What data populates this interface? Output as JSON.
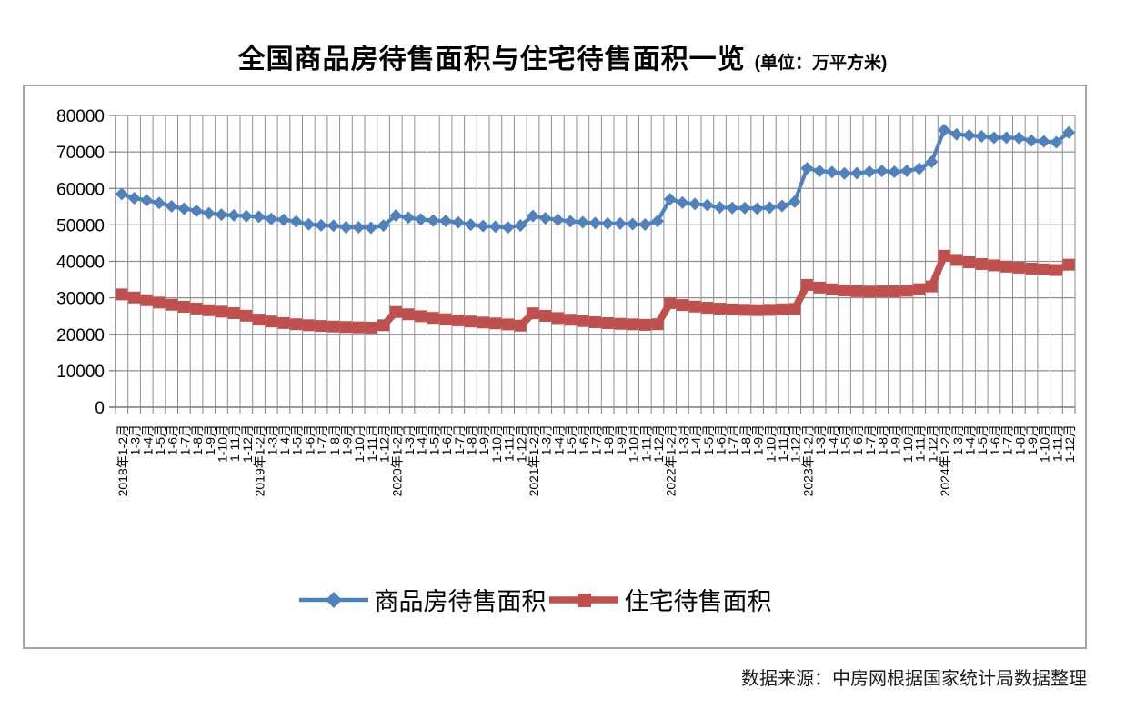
{
  "title": {
    "main": "全国商品房待售面积与住宅待售面积一览",
    "unit": "(单位：万平方米)"
  },
  "footer": {
    "source": "数据来源：中房网根据国家统计局数据整理"
  },
  "chart_data": {
    "type": "line",
    "title": "全国商品房待售面积与住宅待售面积一览",
    "unit": "万平方米",
    "xlabel": "",
    "ylabel": "",
    "ylim": [
      0,
      80000
    ],
    "ytick_step": 10000,
    "grid": true,
    "legend_position": "bottom",
    "categories": [
      "2018年1-2月",
      "1-3月",
      "1-4月",
      "1-5月",
      "1-6月",
      "1-7月",
      "1-8月",
      "1-9月",
      "1-10月",
      "1-11月",
      "1-12月",
      "2019年1-2月",
      "1-3月",
      "1-4月",
      "1-5月",
      "1-6月",
      "1-7月",
      "1-8月",
      "1-9月",
      "1-10月",
      "1-11月",
      "1-12月",
      "2020年1-2月",
      "1-3月",
      "1-4月",
      "1-5月",
      "1-6月",
      "1-7月",
      "1-8月",
      "1-9月",
      "1-10月",
      "1-11月",
      "1-12月",
      "2021年1-2月",
      "1-3月",
      "1-4月",
      "1-5月",
      "1-6月",
      "1-7月",
      "1-8月",
      "1-9月",
      "1-10月",
      "1-11月",
      "1-12月",
      "2022年1-2月",
      "1-3月",
      "1-4月",
      "1-5月",
      "1-6月",
      "1-7月",
      "1-8月",
      "1-9月",
      "1-10月",
      "1-11月",
      "1-12月",
      "2023年1-2月",
      "1-3月",
      "1-4月",
      "1-5月",
      "1-6月",
      "1-7月",
      "1-8月",
      "1-9月",
      "1-10月",
      "1-11月",
      "1-12月",
      "2024年1-2月",
      "1-3月",
      "1-4月",
      "1-5月",
      "1-6月",
      "1-7月",
      "1-8月",
      "1-9月",
      "1-10月",
      "1-11月",
      "1-12月"
    ],
    "series": [
      {
        "name": "商品房待售面积",
        "color": "#4F81BD",
        "marker": "diamond",
        "values": [
          58468,
          57329,
          56726,
          56010,
          55083,
          54428,
          53873,
          53191,
          52789,
          52627,
          52414,
          52251,
          51646,
          51380,
          50928,
          50162,
          49876,
          49784,
          49346,
          49323,
          49221,
          49821,
          52563,
          51989,
          51512,
          51184,
          51082,
          50691,
          50052,
          49687,
          49492,
          49287,
          49850,
          52425,
          51835,
          51380,
          51005,
          50738,
          50492,
          50359,
          50385,
          50203,
          50082,
          51023,
          57026,
          56113,
          55735,
          55433,
          54784,
          54655,
          54605,
          54467,
          54734,
          55203,
          56366,
          65528,
          64770,
          64487,
          64120,
          64159,
          64564,
          64795,
          64537,
          64835,
          65385,
          67295,
          75969,
          74833,
          74553,
          74256,
          73894,
          73926,
          73811,
          73113,
          72909,
          72645,
          75327
        ]
      },
      {
        "name": "住宅待售面积",
        "color": "#C0504D",
        "marker": "square",
        "values": [
          30932,
          30090,
          29340,
          28700,
          28100,
          27550,
          27060,
          26600,
          26210,
          25800,
          25091,
          24036,
          23500,
          23080,
          22750,
          22480,
          22280,
          22120,
          21990,
          21890,
          21820,
          22473,
          26111,
          25480,
          24950,
          24500,
          24130,
          23790,
          23500,
          23230,
          22990,
          22700,
          22379,
          25748,
          25050,
          24450,
          23980,
          23620,
          23300,
          23060,
          22880,
          22720,
          22580,
          22761,
          28555,
          28010,
          27600,
          27280,
          27020,
          26830,
          26700,
          26620,
          26700,
          26850,
          26947,
          33540,
          32810,
          32330,
          32020,
          31810,
          31710,
          31760,
          31770,
          31940,
          32360,
          33119,
          41536,
          40390,
          39750,
          39270,
          38890,
          38550,
          38270,
          38020,
          37810,
          37620,
          39085
        ]
      }
    ]
  }
}
